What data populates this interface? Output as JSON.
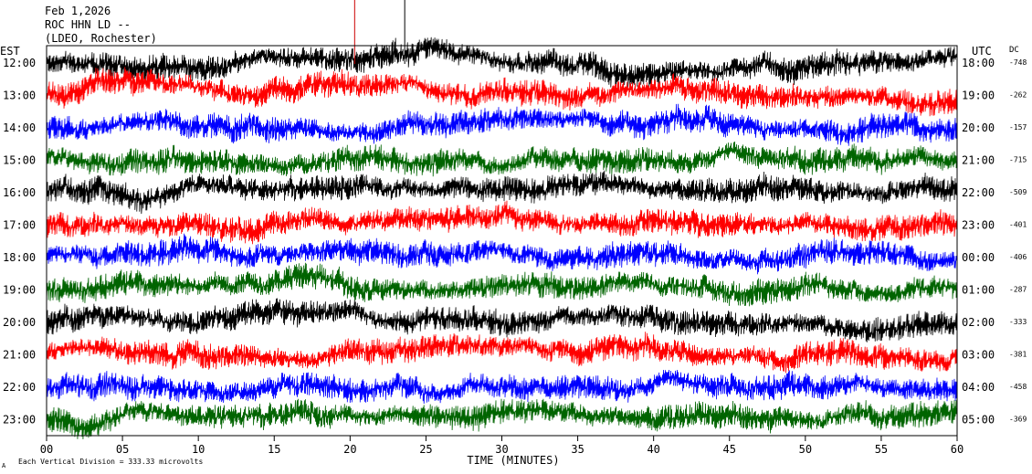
{
  "header": {
    "date": "Feb 1,2026",
    "station": "ROC HHN LD --",
    "network": "(LDEO, Rochester)"
  },
  "left_zone": "EST",
  "right_zone": "UTC",
  "dc_label": "DC",
  "footer": {
    "scale_note": "Each Vertical Division =  333.33 microvolts",
    "corner_mark": "A"
  },
  "colors": {
    "trace_cycle": [
      "#000000",
      "#ff0000",
      "#0000ff",
      "#006400"
    ],
    "event_marker": "#cc0000",
    "frame": "#000000"
  },
  "chart_data": {
    "type": "line",
    "title": "",
    "xlabel": "TIME (MINUTES)",
    "ylabel": "",
    "xlim": [
      0,
      60
    ],
    "x_ticks": [
      0,
      5,
      10,
      15,
      20,
      25,
      30,
      35,
      40,
      45,
      50,
      55,
      60
    ],
    "x_tick_labels": [
      "00",
      "05",
      "10",
      "15",
      "20",
      "25",
      "30",
      "35",
      "40",
      "45",
      "50",
      "55",
      "60"
    ],
    "grid": false,
    "vertical_markers_minutes": [
      20.3,
      23.6
    ],
    "rows": [
      {
        "est": "12:00",
        "utc": "18:00",
        "dc": "-748",
        "color": "#000000"
      },
      {
        "est": "13:00",
        "utc": "19:00",
        "dc": "-262",
        "color": "#ff0000"
      },
      {
        "est": "14:00",
        "utc": "20:00",
        "dc": "-157",
        "color": "#0000ff"
      },
      {
        "est": "15:00",
        "utc": "21:00",
        "dc": "-715",
        "color": "#006400"
      },
      {
        "est": "16:00",
        "utc": "22:00",
        "dc": "-509",
        "color": "#000000"
      },
      {
        "est": "17:00",
        "utc": "23:00",
        "dc": "-401",
        "color": "#ff0000"
      },
      {
        "est": "18:00",
        "utc": "00:00",
        "dc": "-406",
        "color": "#0000ff"
      },
      {
        "est": "19:00",
        "utc": "01:00",
        "dc": "-287",
        "color": "#006400"
      },
      {
        "est": "20:00",
        "utc": "02:00",
        "dc": "-333",
        "color": "#000000"
      },
      {
        "est": "21:00",
        "utc": "03:00",
        "dc": "-381",
        "color": "#ff0000"
      },
      {
        "est": "22:00",
        "utc": "04:00",
        "dc": "-458",
        "color": "#0000ff"
      },
      {
        "est": "23:00",
        "utc": "05:00",
        "dc": "-369",
        "color": "#006400"
      }
    ]
  }
}
